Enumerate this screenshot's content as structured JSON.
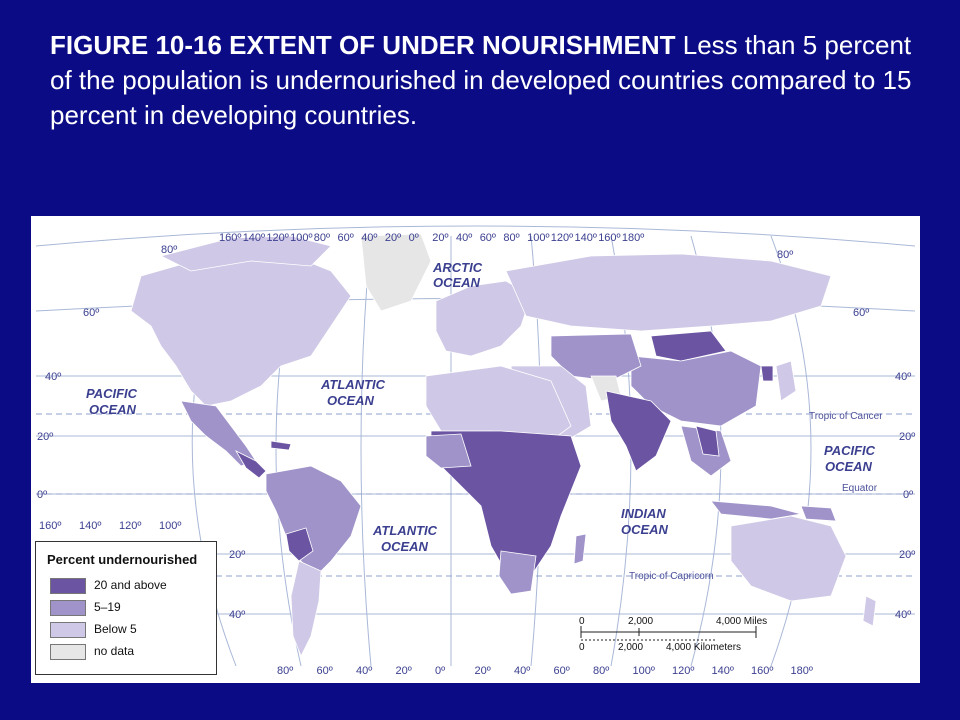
{
  "caption": {
    "figure_label": "FIGURE 10-16 EXTENT OF UNDER NOURISHMENT",
    "text": "Less than 5 percent of the population is undernourished in developed countries compared to 15 percent in developing countries."
  },
  "map": {
    "oceans": {
      "arctic_1": "ARCTIC",
      "arctic_2": "OCEAN",
      "pacific_w_1": "PACIFIC",
      "pacific_w_2": "OCEAN",
      "atlantic_n_1": "ATLANTIC",
      "atlantic_n_2": "OCEAN",
      "atlantic_s_1": "ATLANTIC",
      "atlantic_s_2": "OCEAN",
      "indian_1": "INDIAN",
      "indian_2": "OCEAN",
      "pacific_e_1": "PACIFIC",
      "pacific_e_2": "OCEAN"
    },
    "lines": {
      "tropic_cancer": "Tropic of Cancer",
      "equator": "Equator",
      "tropic_capricorn": "Tropic of Capricorn"
    },
    "top_longitudes": [
      "160º",
      "140º",
      "120º",
      "100º",
      "80º",
      "60º",
      "40º",
      "20º",
      "0º",
      "20º",
      "40º",
      "60º",
      "80º",
      "100º",
      "120º",
      "140º",
      "160º",
      "180º"
    ],
    "bottom_longitudes": [
      "80º",
      "60º",
      "40º",
      "20º",
      "0º",
      "20º",
      "40º",
      "60º",
      "80º",
      "100º",
      "120º",
      "140º",
      "160º",
      "180º"
    ],
    "left_longitudes": [
      "160º",
      "140º",
      "120º",
      "100º"
    ],
    "latitudes": {
      "n80": "80º",
      "n60": "60º",
      "n40": "40º",
      "n20": "20º",
      "eq": "0º",
      "s20": "20º",
      "s40": "40º"
    },
    "legend": {
      "title": "Percent undernourished",
      "items": [
        {
          "label": "20 and above",
          "color": "#6b55a3"
        },
        {
          "label": "5–19",
          "color": "#9f93c9"
        },
        {
          "label": "Below 5",
          "color": "#cfc8e6"
        },
        {
          "label": "no data",
          "color": "#e6e6e6"
        }
      ]
    },
    "scale": {
      "miles_0": "0",
      "miles_2000": "2,000",
      "miles_4000": "4,000 Miles",
      "km_0": "0",
      "km_2000": "2,000",
      "km_4000": "4,000 Kilometers"
    },
    "colors": {
      "dark": "#6b55a3",
      "mid": "#9f93c9",
      "light": "#cfc8e6",
      "none": "#e6e6e6",
      "ocean": "#ffffff",
      "grid": "#a9b8d8"
    }
  }
}
